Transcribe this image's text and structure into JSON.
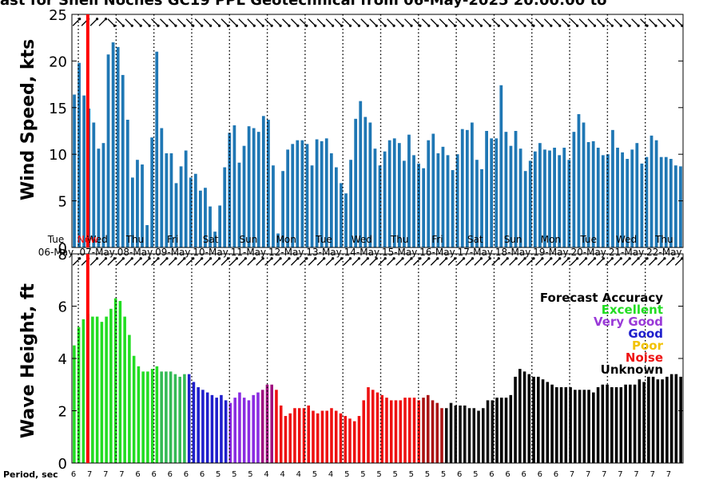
{
  "title": "ast for Shell Noches   GC19 PPL  Geotechnical from 06-May-2025 20:00:00 to",
  "now_label": "Now",
  "chart_data": [
    {
      "type": "bar",
      "panel": "wind",
      "ylabel": "Wind Speed, kts",
      "ylim": [
        0,
        25
      ],
      "yticks": [
        0,
        5,
        10,
        15,
        20,
        25
      ],
      "x_start_day": 0.83,
      "x_end_day": 17.0,
      "day_labels": [
        {
          "day": 0,
          "dow": "Tue",
          "date": "06-May"
        },
        {
          "day": 1,
          "dow": "Wed",
          "date": "07-May"
        },
        {
          "day": 2,
          "dow": "Thu",
          "date": "08-May"
        },
        {
          "day": 3,
          "dow": "Fri",
          "date": "09-May"
        },
        {
          "day": 4,
          "dow": "Sat",
          "date": "10-May"
        },
        {
          "day": 5,
          "dow": "Sun",
          "date": "11-May"
        },
        {
          "day": 6,
          "dow": "Mon",
          "date": "12-May"
        },
        {
          "day": 7,
          "dow": "Tue",
          "date": "13-May"
        },
        {
          "day": 8,
          "dow": "Wed",
          "date": "14-May"
        },
        {
          "day": 9,
          "dow": "Thu",
          "date": "15-May"
        },
        {
          "day": 10,
          "dow": "Fri",
          "date": "16-May"
        },
        {
          "day": 11,
          "dow": "Sat",
          "date": "17-May"
        },
        {
          "day": 12,
          "dow": "Sun",
          "date": "18-May"
        },
        {
          "day": 13,
          "dow": "Mon",
          "date": "19-May"
        },
        {
          "day": 14,
          "dow": "Tue",
          "date": "20-May"
        },
        {
          "day": 15,
          "dow": "Wed",
          "date": "21-May"
        },
        {
          "day": 16,
          "dow": "Thu",
          "date": "22-May"
        }
      ],
      "bar_color": "#1f77b4",
      "values": [
        16.4,
        19.8,
        16.3,
        14.9,
        13.4,
        10.6,
        11.2,
        20.7,
        22.0,
        21.5,
        18.5,
        13.7,
        7.5,
        9.4,
        8.9,
        2.4,
        11.8,
        21.0,
        12.8,
        10.1,
        10.1,
        6.9,
        8.7,
        10.4,
        7.5,
        7.9,
        6.1,
        6.4,
        4.4,
        1.7,
        4.5,
        8.6,
        12.3,
        13.1,
        9.1,
        10.9,
        13.0,
        12.8,
        12.4,
        14.1,
        13.7,
        8.8,
        1.5,
        8.2,
        10.5,
        11.1,
        11.5,
        11.5,
        11.1,
        8.8,
        11.6,
        11.4,
        11.7,
        10.1,
        8.6,
        6.9,
        5.8,
        9.4,
        13.8,
        15.7,
        14.0,
        13.4,
        10.6,
        8.8,
        10.3,
        11.5,
        11.7,
        11.2,
        9.3,
        12.1,
        9.9,
        9.0,
        8.5,
        11.5,
        12.2,
        10.1,
        10.8,
        9.9,
        8.3,
        10.0,
        12.7,
        12.6,
        13.4,
        9.4,
        8.4,
        12.5,
        11.7,
        11.7,
        17.4,
        12.4,
        10.9,
        12.5,
        10.6,
        8.2,
        9.3,
        10.3,
        11.2,
        10.5,
        10.4,
        10.7,
        9.9,
        10.7,
        9.4,
        12.4,
        14.3,
        13.4,
        11.3,
        11.4,
        10.7,
        9.9,
        10.0,
        12.6,
        10.7,
        10.2,
        9.5,
        10.5,
        11.2,
        9.0,
        9.7,
        12.0,
        11.5,
        9.7,
        9.7,
        9.5,
        8.8,
        8.7
      ],
      "direction_arrows_deg": [
        135,
        135,
        135,
        135,
        225,
        225,
        225,
        225,
        225,
        225,
        225,
        225,
        225,
        225,
        225,
        225,
        225,
        225,
        225,
        225,
        225,
        225,
        225,
        225,
        225,
        225,
        225,
        225,
        225,
        225,
        225,
        225,
        225,
        225,
        225,
        225,
        225,
        225,
        225,
        225,
        225,
        225,
        225,
        225,
        225,
        225,
        225,
        225,
        225,
        225,
        225,
        225,
        225,
        225,
        225,
        225,
        225,
        225,
        225,
        225,
        225,
        225,
        225,
        225,
        225,
        225,
        225,
        225,
        225,
        225
      ]
    },
    {
      "type": "bar",
      "panel": "wave",
      "ylabel": "Wave Height, ft",
      "ylim": [
        0,
        8
      ],
      "yticks": [
        0,
        2,
        4,
        6,
        8
      ],
      "x_start_day": 0.83,
      "x_end_day": 17.0,
      "values": [
        4.5,
        5.2,
        5.5,
        5.7,
        5.6,
        5.6,
        5.4,
        5.6,
        5.9,
        6.3,
        6.2,
        5.6,
        4.9,
        4.1,
        3.7,
        3.5,
        3.5,
        3.6,
        3.7,
        3.5,
        3.5,
        3.5,
        3.4,
        3.3,
        3.4,
        3.4,
        3.1,
        2.9,
        2.8,
        2.7,
        2.6,
        2.5,
        2.6,
        2.4,
        2.3,
        2.5,
        2.7,
        2.5,
        2.4,
        2.6,
        2.7,
        2.8,
        3.0,
        3.0,
        2.8,
        2.2,
        1.8,
        1.9,
        2.1,
        2.1,
        2.1,
        2.2,
        2.0,
        1.9,
        2.0,
        2.0,
        2.1,
        2.0,
        1.9,
        1.8,
        1.7,
        1.6,
        1.8,
        2.4,
        2.9,
        2.8,
        2.7,
        2.6,
        2.5,
        2.4,
        2.4,
        2.4,
        2.5,
        2.5,
        2.5,
        2.4,
        2.5,
        2.6,
        2.4,
        2.3,
        2.1,
        2.1,
        2.3,
        2.2,
        2.2,
        2.2,
        2.1,
        2.1,
        2.0,
        2.1,
        2.4,
        2.4,
        2.5,
        2.5,
        2.5,
        2.6,
        3.3,
        3.6,
        3.5,
        3.4,
        3.3,
        3.3,
        3.2,
        3.1,
        3.0,
        2.9,
        2.9,
        2.9,
        2.9,
        2.8,
        2.8,
        2.8,
        2.8,
        2.7,
        2.9,
        3.0,
        3.0,
        2.9,
        2.9,
        2.9,
        3.0,
        3.0,
        3.0,
        3.2,
        3.1,
        3.3,
        3.3,
        3.2,
        3.2,
        3.3,
        3.4,
        3.4,
        3.3
      ],
      "colors_by_segment": [
        {
          "from": 0,
          "to": 19,
          "color": "#22dd22"
        },
        {
          "from": 19,
          "to": 25,
          "color": "#33bb55"
        },
        {
          "from": 25,
          "to": 34,
          "color": "#1f1fcc"
        },
        {
          "from": 34,
          "to": 41,
          "color": "#8a2be2"
        },
        {
          "from": 41,
          "to": 44,
          "color": "#a01080"
        },
        {
          "from": 44,
          "to": 76,
          "color": "#ee1111"
        },
        {
          "from": 76,
          "to": 81,
          "color": "#aa1111"
        },
        {
          "from": 81,
          "to": 92,
          "color": "#111111"
        },
        {
          "from": 92,
          "to": 200,
          "color": "#000000"
        }
      ],
      "period_sec": [
        6,
        7,
        7,
        7,
        6,
        6,
        6,
        6,
        6,
        5,
        5,
        5,
        4,
        4,
        4,
        5,
        4,
        5,
        5,
        5,
        5,
        5,
        5,
        5,
        6,
        5,
        6,
        6,
        6,
        6,
        6,
        7,
        7,
        7,
        7,
        7,
        7,
        7
      ],
      "direction_arrows_deg": [
        135,
        135,
        135,
        135,
        135,
        135,
        135,
        135,
        135,
        135,
        135,
        135,
        135,
        135,
        135,
        135,
        135,
        135,
        135,
        135,
        135,
        135,
        135,
        135,
        135,
        135,
        135,
        135,
        135,
        135,
        135,
        135,
        135,
        135,
        135,
        135,
        135,
        135,
        135,
        135,
        135,
        135,
        135,
        135,
        135,
        135,
        135,
        135,
        135,
        135,
        135,
        135,
        135,
        135,
        135,
        135,
        135,
        135,
        135,
        135,
        135,
        135,
        135,
        135,
        135,
        135,
        135,
        135,
        135,
        135
      ]
    }
  ],
  "legend": {
    "title": "Forecast Accuracy",
    "items": [
      {
        "label": "Excellent",
        "color": "#22dd22"
      },
      {
        "label": "Very Good",
        "color": "#9a3ad8"
      },
      {
        "label": "Good",
        "color": "#1f1fcc"
      },
      {
        "label": "Poor",
        "color": "#f2c200"
      },
      {
        "label": "Noise",
        "color": "#ee1111"
      },
      {
        "label": "Unknown",
        "color": "#000000"
      }
    ]
  },
  "period_label": "Period, sec",
  "colors": {
    "now_line": "#ff0000",
    "grid": "#000000"
  }
}
